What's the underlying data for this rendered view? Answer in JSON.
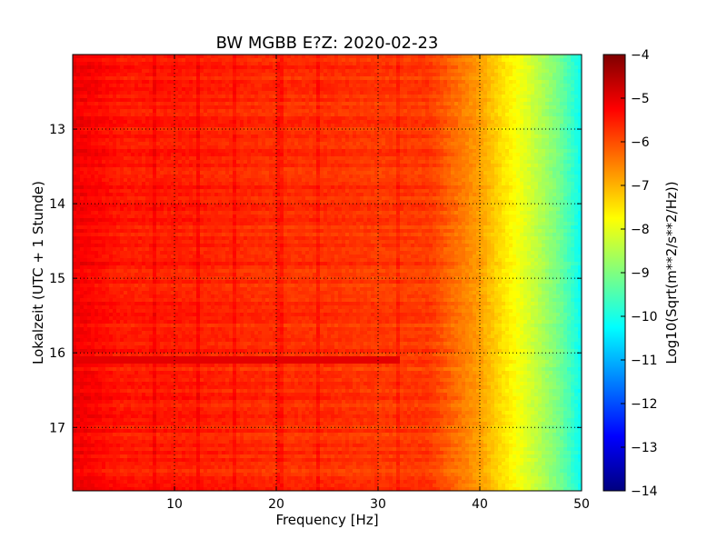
{
  "chart_data": {
    "type": "heatmap",
    "title": "BW MGBB E?Z: 2020-02-23",
    "xlabel": "Frequency [Hz]",
    "ylabel": "Lokalzeit (UTC + 1 Stunde)",
    "xlim": [
      0,
      50
    ],
    "ylim": [
      17.85,
      12.0
    ],
    "x_ticks": [
      10,
      20,
      30,
      40,
      50
    ],
    "x_tick_labels": [
      "10",
      "20",
      "30",
      "40",
      "50"
    ],
    "y_ticks": [
      13,
      14,
      15,
      16,
      17
    ],
    "y_tick_labels": [
      "13",
      "14",
      "15",
      "16",
      "17"
    ],
    "grid": true,
    "colormap": "jet",
    "colorbar": {
      "label": "Log10(Sqrt(m**2/s**2/Hz))",
      "range": [
        -14,
        -4
      ],
      "ticks": [
        -4,
        -5,
        -6,
        -7,
        -8,
        -9,
        -10,
        -11,
        -12,
        -13,
        -14
      ],
      "tick_labels": [
        "−4",
        "−5",
        "−6",
        "−7",
        "−8",
        "−9",
        "−10",
        "−11",
        "−12",
        "−13",
        "−14"
      ]
    },
    "spectrum_profile": {
      "frequency_hz": [
        0,
        5,
        10,
        15,
        20,
        25,
        30,
        35,
        37,
        40,
        42,
        44,
        46,
        48,
        50
      ],
      "log10_amplitude": [
        -5.1,
        -5.5,
        -5.5,
        -5.6,
        -5.7,
        -5.7,
        -5.8,
        -5.8,
        -6.2,
        -6.8,
        -7.4,
        -7.9,
        -8.5,
        -9.2,
        -10.2
      ]
    },
    "spectral_lines_hz": [
      8,
      12.4,
      16,
      20.3,
      24.2,
      32
    ],
    "strong_band": {
      "time_h": 16.1,
      "freq_range_hz": [
        0,
        32
      ],
      "log10_amplitude": -5.0
    }
  }
}
